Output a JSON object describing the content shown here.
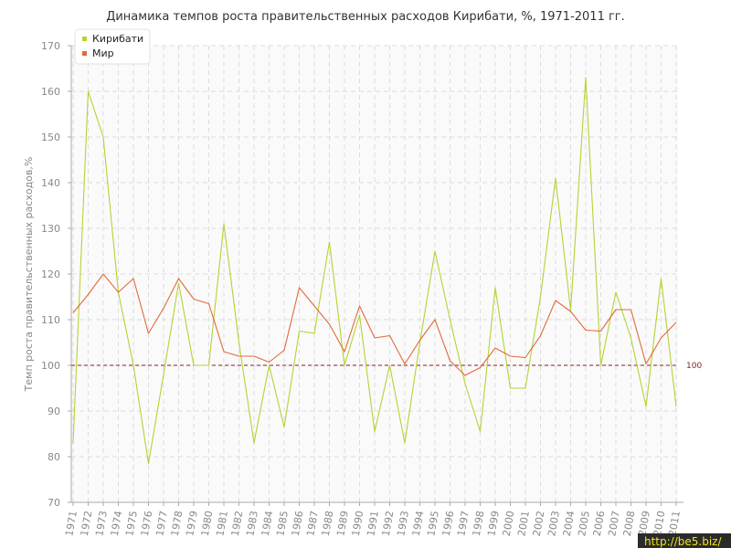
{
  "chart_data": {
    "type": "line",
    "title": "Динамика темпов роста правительственных расходов Кирибати, %, 1971-2011 гг.",
    "ylabel": "Темп роста правительственных расходов,%",
    "xlabel": "",
    "ylim": [
      70,
      170
    ],
    "yticks": [
      70,
      80,
      90,
      100,
      110,
      120,
      130,
      140,
      150,
      160,
      170
    ],
    "x": [
      "1971",
      "1972",
      "1973",
      "1974",
      "1975",
      "1976",
      "1977",
      "1978",
      "1979",
      "1980",
      "1981",
      "1982",
      "1983",
      "1984",
      "1985",
      "1986",
      "1987",
      "1988",
      "1989",
      "1990",
      "1991",
      "1992",
      "1993",
      "1994",
      "1995",
      "1996",
      "1997",
      "1998",
      "1999",
      "2000",
      "2001",
      "2002",
      "2003",
      "2004",
      "2005",
      "2006",
      "2007",
      "2008",
      "2009",
      "2010",
      "2011"
    ],
    "series": [
      {
        "name": "Кирибати",
        "color": "#b5d334",
        "values": [
          83,
          160,
          150,
          116,
          100,
          78.5,
          98,
          118,
          100,
          100,
          131,
          105,
          83,
          100,
          86.5,
          107.5,
          107,
          127,
          100,
          111,
          85.5,
          100,
          83,
          105,
          125,
          110,
          96,
          85.5,
          117,
          95,
          95,
          115,
          141,
          112,
          163,
          100,
          116,
          106,
          91,
          119,
          91
        ]
      },
      {
        "name": "Мир",
        "color": "#e06a3a",
        "values": [
          111.5,
          115.5,
          120,
          116,
          119,
          107,
          112.5,
          119,
          114.5,
          113.5,
          103,
          102,
          102,
          100.7,
          103.3,
          117,
          113,
          109,
          103,
          113,
          106,
          106.5,
          100.3,
          105.5,
          110,
          101,
          97.8,
          99.5,
          103.8,
          102,
          101.7,
          106.5,
          114.2,
          111.8,
          107.7,
          107.5,
          112.2,
          112.2,
          100.3,
          106,
          109.4
        ]
      }
    ],
    "reference_line": {
      "value": 100,
      "label": "100",
      "color": "#8b1c1c"
    },
    "legend_position": "top-left",
    "grid": true
  },
  "watermark": "http://be5.biz/"
}
